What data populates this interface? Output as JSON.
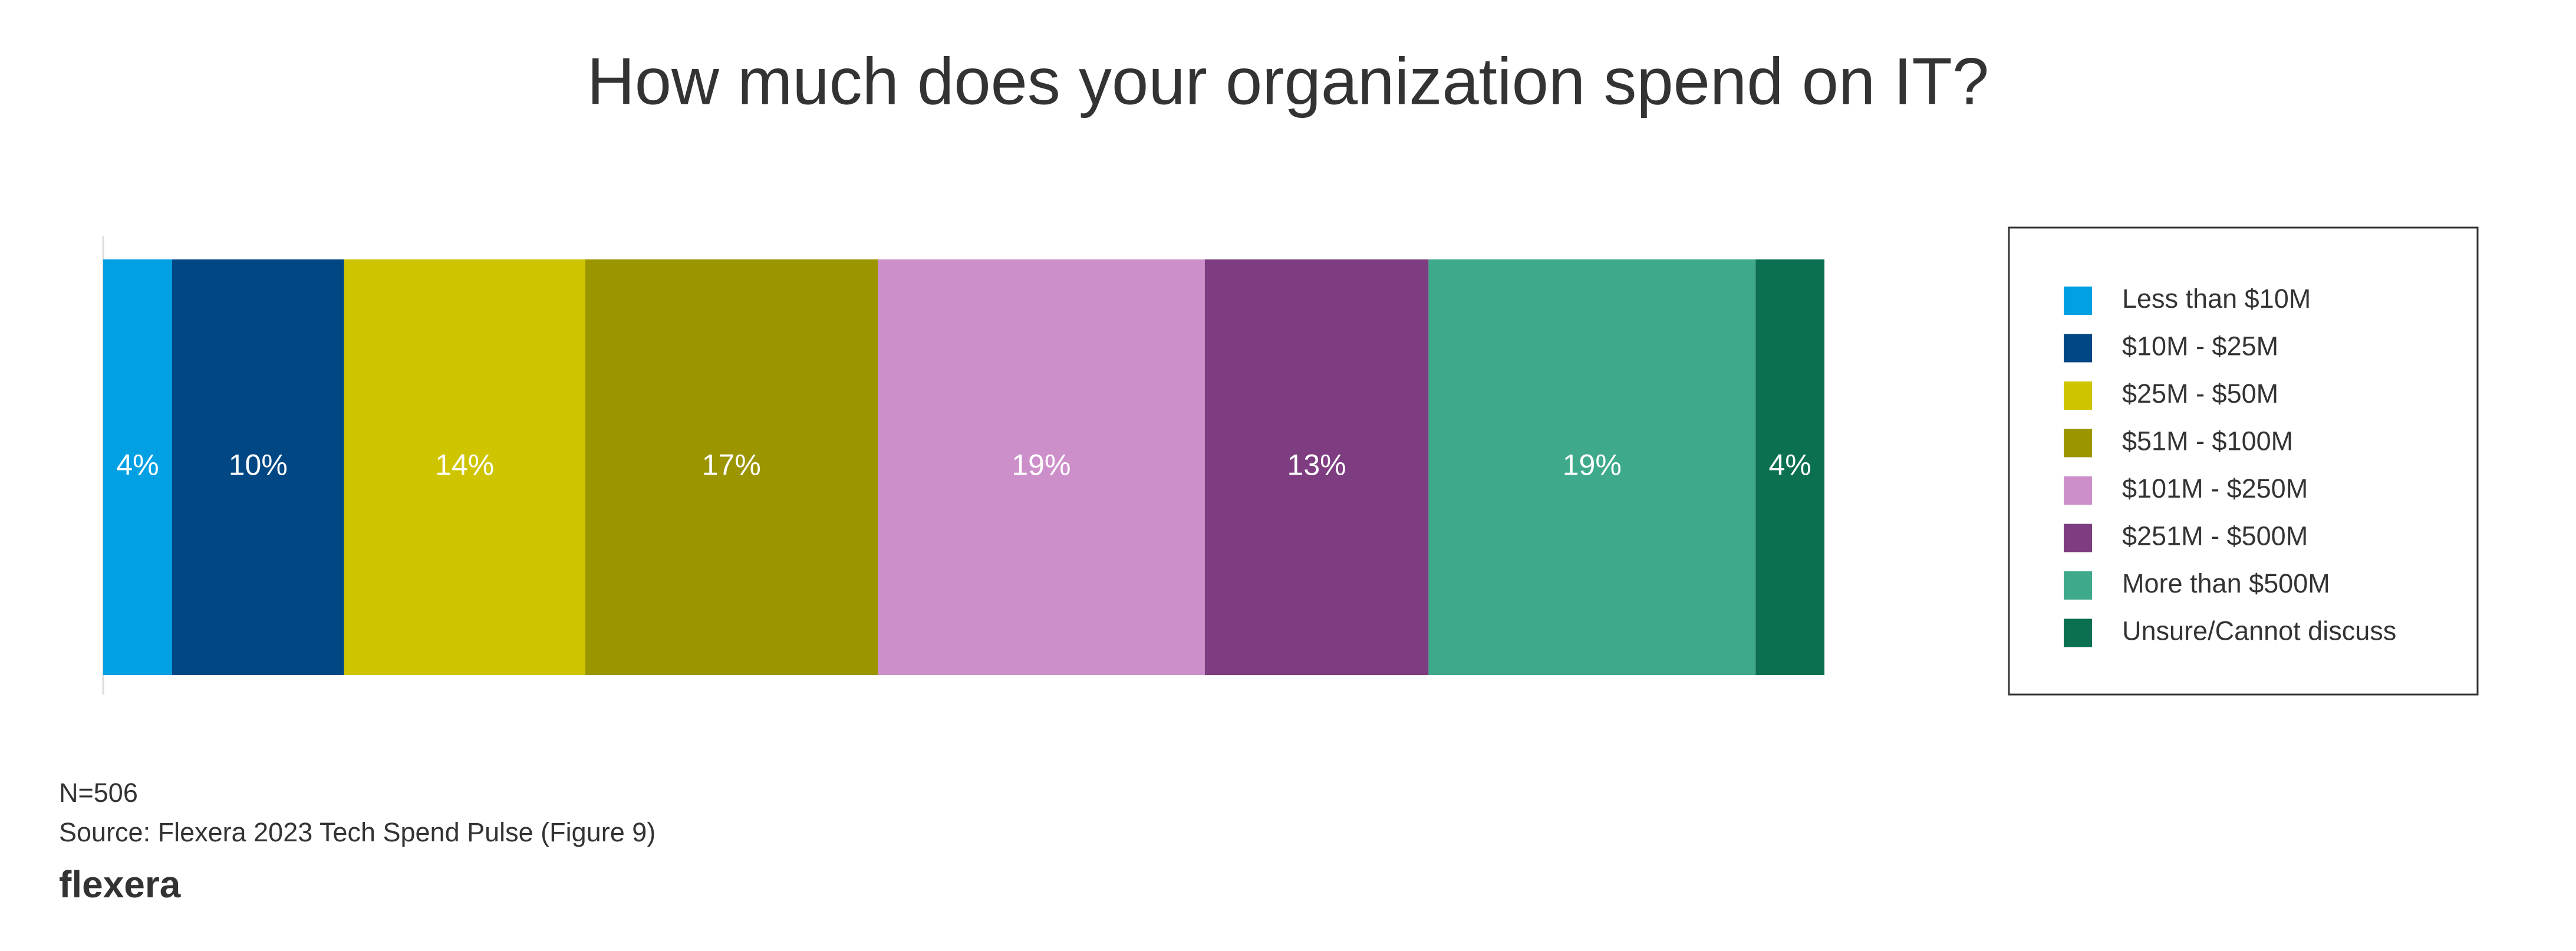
{
  "chart_data": {
    "type": "stacked-bar-horizontal",
    "title": "How much does your organization spend on IT?",
    "xlim": [
      0,
      100
    ],
    "series": [
      {
        "name": "Less than $10M",
        "color": "#00a0e3",
        "values": [
          4
        ],
        "value_labels": [
          "4%"
        ]
      },
      {
        "name": "$10M - $25M",
        "color": "#004784",
        "values": [
          10
        ],
        "value_labels": [
          "10%"
        ]
      },
      {
        "name": "$25M - $50M",
        "color": "#cfc400",
        "values": [
          14
        ],
        "value_labels": [
          "14%"
        ]
      },
      {
        "name": "$51M - $100M",
        "color": "#9b9500",
        "values": [
          17
        ],
        "value_labels": [
          "17%"
        ]
      },
      {
        "name": "$101M - $250M",
        "color": "#cc8fca",
        "values": [
          19
        ],
        "value_labels": [
          "19%"
        ]
      },
      {
        "name": "$251M - $500M",
        "color": "#7e3d80",
        "values": [
          13
        ],
        "value_labels": [
          "13%"
        ]
      },
      {
        "name": "More than $500M",
        "color": "#3ea98b",
        "values": [
          19
        ],
        "value_labels": [
          "19%"
        ]
      },
      {
        "name": "Unsure/Cannot discuss",
        "color": "#0b7052",
        "values": [
          4
        ],
        "value_labels": [
          "4%"
        ]
      }
    ],
    "legend": "right",
    "note": "N=506",
    "source": "Source: Flexera 2023 Tech Spend Pulse (Figure 9)",
    "logo": "flexera"
  }
}
